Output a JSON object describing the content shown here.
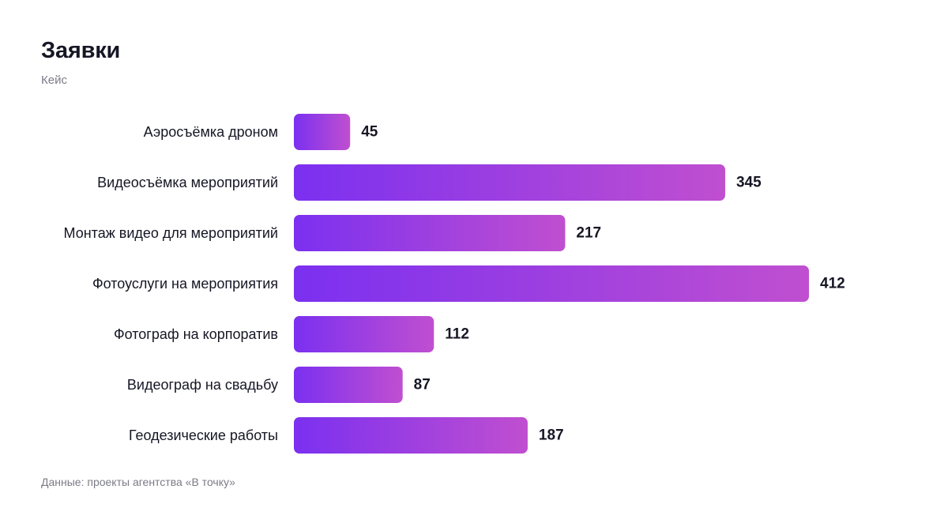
{
  "header": {
    "title": "Заявки",
    "subtitle": "Кейс"
  },
  "footer": {
    "source": "Данные: проекты агентства «В точку»"
  },
  "colors": {
    "bar_start": "#7b30f0",
    "bar_end": "#c04fd0",
    "text": "#161625",
    "muted": "#7b7b87"
  },
  "chart_data": {
    "type": "bar",
    "orientation": "horizontal",
    "title": "Заявки",
    "subtitle": "Кейс",
    "categories": [
      "Аэросъёмка дроном",
      "Видеосъёмка мероприятий",
      "Монтаж видео для мероприятий",
      "Фотоуслуги на мероприятия",
      "Фотограф на корпоратив",
      "Видеограф на свадьбу",
      "Геодезические работы"
    ],
    "values": [
      45,
      345,
      217,
      412,
      112,
      87,
      187
    ],
    "xlim": [
      0,
      412
    ],
    "grid": false,
    "legend": "none",
    "data_labels": true
  }
}
